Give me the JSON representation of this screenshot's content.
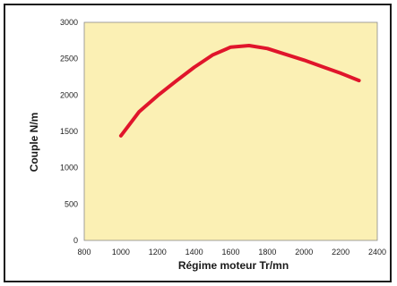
{
  "chart_data": {
    "type": "line",
    "title": "",
    "xlabel": "Régime moteur Tr/mn",
    "ylabel": "Couple N/m",
    "xlim": [
      800,
      2400
    ],
    "ylim": [
      0,
      3000
    ],
    "x_ticks": [
      800,
      1000,
      1200,
      1400,
      1600,
      1800,
      2000,
      2200,
      2400
    ],
    "y_ticks": [
      0,
      500,
      1000,
      1500,
      2000,
      2500,
      3000
    ],
    "grid": false,
    "legend": "none",
    "plot_background": "#fbf0b4",
    "series": [
      {
        "color": "#e0152b",
        "x": [
          1000,
          1100,
          1200,
          1300,
          1400,
          1500,
          1600,
          1700,
          1800,
          1900,
          2000,
          2100,
          2200,
          2300
        ],
        "y": [
          1440,
          1770,
          1990,
          2190,
          2380,
          2550,
          2660,
          2680,
          2640,
          2560,
          2480,
          2390,
          2300,
          2200
        ]
      }
    ]
  }
}
